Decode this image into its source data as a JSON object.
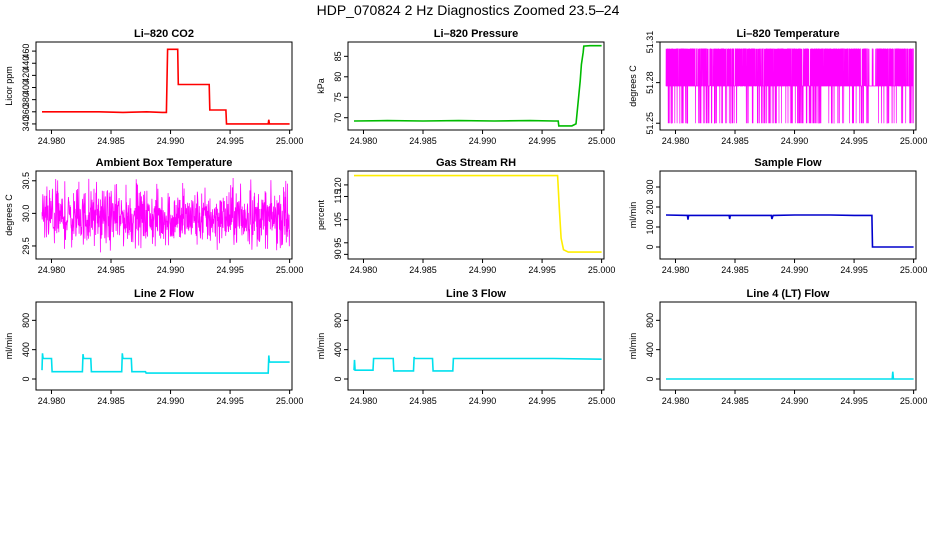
{
  "page": {
    "title": "HDP_070824  2 Hz Diagnostics Zoomed 23.5–24"
  },
  "x_ticks": [
    "24.980",
    "24.985",
    "24.990",
    "24.995",
    "25.000"
  ],
  "chart_data": [
    {
      "type": "line",
      "title": "Li–820 CO2",
      "ylabel": "Licor ppm",
      "color": "#ff0000",
      "xlim": [
        24.9787,
        25.0002
      ],
      "ylim": [
        330,
        475
      ],
      "yticks": [
        "340",
        "360",
        "380",
        "400",
        "420",
        "440",
        "460"
      ],
      "x": [
        24.9792,
        24.984,
        24.986,
        24.988,
        24.9893,
        24.98965,
        24.98975,
        24.9906,
        24.99065,
        24.992,
        24.99325,
        24.9933,
        24.99465,
        24.9947,
        24.996,
        24.997,
        24.998,
        24.9982,
        24.99825,
        24.9983,
        24.9985,
        25.0
      ],
      "values": [
        360,
        360,
        359,
        360,
        359,
        359,
        463,
        463,
        405,
        405,
        405,
        363,
        363,
        340,
        340,
        340,
        340,
        340,
        347,
        340,
        340,
        340
      ]
    },
    {
      "type": "line",
      "title": "Li–820 Pressure",
      "ylabel": "kPa",
      "color": "#00bb00",
      "xlim": [
        24.9787,
        25.0002
      ],
      "ylim": [
        67,
        88.5
      ],
      "yticks": [
        "70",
        "75",
        "80",
        "85"
      ],
      "x": [
        24.9792,
        24.982,
        24.985,
        24.988,
        24.991,
        24.994,
        24.996,
        24.99635,
        24.9964,
        24.9975,
        24.99785,
        24.9981,
        24.9982,
        24.9983,
        24.99845,
        24.9985,
        24.999,
        25.0
      ],
      "values": [
        69.2,
        69.3,
        69.2,
        69.3,
        69.2,
        69.3,
        69.2,
        69.2,
        68.0,
        68.0,
        68.5,
        76,
        79,
        83,
        86,
        87.5,
        87.6,
        87.6
      ]
    },
    {
      "type": "line",
      "title": "Li–820 Temperature",
      "ylabel": "degrees C",
      "color": "#ff00ff",
      "xlim": [
        24.9787,
        25.0002
      ],
      "ylim": [
        51.245,
        51.31
      ],
      "yticks": [
        "51.25",
        "51.28",
        "51.31"
      ],
      "x_range": [
        24.9792,
        25.0
      ],
      "levels": [
        51.25,
        51.2775,
        51.305
      ],
      "sample_count": 2500,
      "quiet_windows": [
        [
          24.9962,
          24.9968
        ]
      ]
    },
    {
      "type": "line",
      "title": "Ambient Box Temperature",
      "ylabel": "degrees C",
      "color": "#ff00ff",
      "xlim": [
        24.9787,
        25.0002
      ],
      "ylim": [
        29.3,
        30.65
      ],
      "yticks": [
        "29.5",
        "30.0",
        "30.5"
      ],
      "x_range": [
        24.9792,
        25.0
      ],
      "mean": 29.93,
      "min": 29.4,
      "max": 30.55,
      "sample_count": 900
    },
    {
      "type": "line",
      "title": "Gas Stream RH",
      "ylabel": "percent",
      "color": "#ffee00",
      "xlim": [
        24.9787,
        25.0002
      ],
      "ylim": [
        88,
        126
      ],
      "yticks": [
        "90",
        "95",
        "105",
        "115",
        "120"
      ],
      "x": [
        24.9792,
        24.983,
        24.987,
        24.991,
        24.995,
        24.9963,
        24.99645,
        24.9966,
        24.9968,
        24.9972,
        24.998,
        24.999,
        25.0
      ],
      "values": [
        124,
        124,
        124,
        124,
        124,
        124,
        110,
        97,
        92,
        91,
        91,
        91,
        91
      ]
    },
    {
      "type": "line",
      "title": "Sample Flow",
      "ylabel": "ml/min",
      "color": "#0000cc",
      "xlim": [
        24.9787,
        25.0002
      ],
      "ylim": [
        -60,
        380
      ],
      "yticks": [
        "0",
        "100",
        "200",
        "300"
      ],
      "x": [
        24.9792,
        24.981,
        24.98105,
        24.9811,
        24.983,
        24.9845,
        24.98455,
        24.9846,
        24.987,
        24.98805,
        24.9881,
        24.9882,
        24.99,
        24.993,
        24.995,
        24.9965,
        24.99655,
        24.9975,
        24.999,
        25.0
      ],
      "values": [
        160,
        158,
        137,
        158,
        158,
        158,
        140,
        158,
        158,
        158,
        140,
        158,
        160,
        160,
        158,
        158,
        0,
        0,
        0,
        0
      ]
    },
    {
      "type": "line",
      "title": "Line 2 Flow",
      "ylabel": "ml/min",
      "color": "#00e0ee",
      "xlim": [
        24.9787,
        25.0002
      ],
      "ylim": [
        -150,
        1050
      ],
      "yticks": [
        "0",
        "400",
        "800"
      ],
      "x": [
        24.9792,
        24.97925,
        24.9793,
        24.98,
        24.98005,
        24.9826,
        24.98265,
        24.9827,
        24.9833,
        24.98335,
        24.9859,
        24.98595,
        24.986,
        24.9867,
        24.98675,
        24.9879,
        24.98795,
        24.99,
        24.993,
        24.996,
        24.9982,
        24.99825,
        24.9983,
        24.999,
        25.0
      ],
      "values": [
        120,
        350,
        280,
        280,
        100,
        100,
        340,
        280,
        280,
        100,
        100,
        350,
        280,
        280,
        100,
        100,
        80,
        80,
        80,
        80,
        80,
        320,
        230,
        230,
        230
      ]
    },
    {
      "type": "line",
      "title": "Line 3 Flow",
      "ylabel": "ml/min",
      "color": "#00e0ee",
      "xlim": [
        24.9787,
        25.0002
      ],
      "ylim": [
        -150,
        1050
      ],
      "yticks": [
        "0",
        "400",
        "800"
      ],
      "x": [
        24.9792,
        24.97925,
        24.9793,
        24.9808,
        24.98085,
        24.9809,
        24.9825,
        24.98255,
        24.9842,
        24.98425,
        24.9843,
        24.9858,
        24.98585,
        24.9875,
        24.98755,
        24.99,
        24.993,
        24.996,
        25.0
      ],
      "values": [
        120,
        260,
        120,
        120,
        280,
        280,
        280,
        110,
        110,
        300,
        280,
        280,
        110,
        110,
        280,
        280,
        280,
        280,
        270
      ]
    },
    {
      "type": "line",
      "title": "Line 4 (LT) Flow",
      "ylabel": "ml/min",
      "color": "#00e0ee",
      "xlim": [
        24.9787,
        25.0002
      ],
      "ylim": [
        -150,
        1050
      ],
      "yticks": [
        "0",
        "400",
        "800"
      ],
      "x": [
        24.9792,
        24.985,
        24.99,
        24.995,
        24.9982,
        24.99825,
        24.9983,
        24.999,
        25.0
      ],
      "values": [
        0,
        0,
        0,
        0,
        0,
        100,
        0,
        0,
        0
      ]
    }
  ]
}
